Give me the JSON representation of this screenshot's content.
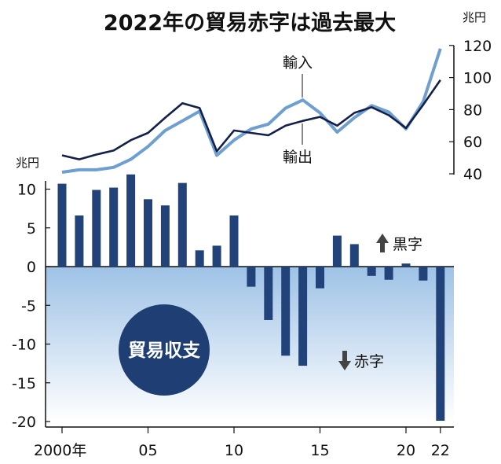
{
  "chart_data": {
    "title": "2022年の貿易赤字は過去最大",
    "x_tick_labels": [
      "2000年",
      "05",
      "10",
      "15",
      "20",
      "22"
    ],
    "top": {
      "type": "line",
      "unit": "兆円",
      "ylim": [
        40,
        120
      ],
      "yticks": [
        40,
        60,
        80,
        100,
        120
      ],
      "x": [
        2000,
        2001,
        2002,
        2003,
        2004,
        2005,
        2006,
        2007,
        2008,
        2009,
        2010,
        2011,
        2012,
        2013,
        2014,
        2015,
        2016,
        2017,
        2018,
        2019,
        2020,
        2021,
        2022
      ],
      "series": [
        {
          "name": "輸入",
          "label": "輸入",
          "color": "#6f9ed0",
          "values": [
            41,
            42.5,
            42.5,
            44,
            49,
            57,
            67,
            73,
            79,
            51.5,
            61,
            68,
            71,
            81,
            86,
            78,
            66,
            75,
            82.5,
            78.5,
            68,
            85,
            118
          ]
        },
        {
          "name": "輸出",
          "label": "輸出",
          "color": "#13204a",
          "values": [
            51.5,
            49,
            52,
            54.5,
            61,
            65.5,
            75,
            84,
            81,
            54,
            67,
            65.5,
            64,
            70,
            73,
            75.5,
            70,
            78,
            81.5,
            76.5,
            68.5,
            83,
            98.5
          ]
        }
      ]
    },
    "bottom": {
      "type": "bar",
      "unit": "兆円",
      "ylim": [
        -20,
        12
      ],
      "yticks": [
        10,
        5,
        0,
        -5,
        -10,
        -15,
        -20
      ],
      "ytick_labels": [
        "10",
        "5",
        "0",
        "-5",
        "-10",
        "-15",
        "-20"
      ],
      "x": [
        2000,
        2001,
        2002,
        2003,
        2004,
        2005,
        2006,
        2007,
        2008,
        2009,
        2010,
        2011,
        2012,
        2013,
        2014,
        2015,
        2016,
        2017,
        2018,
        2019,
        2020,
        2021,
        2022
      ],
      "values": [
        10.7,
        6.6,
        9.9,
        10.2,
        11.9,
        8.7,
        7.9,
        10.8,
        2.1,
        2.7,
        6.6,
        -2.6,
        -6.9,
        -11.5,
        -12.8,
        -2.8,
        4.0,
        2.9,
        -1.2,
        -1.7,
        0.4,
        -1.8,
        -19.9
      ],
      "bar_color": "#22437a",
      "annotations": {
        "surplus": "黒字",
        "deficit": "赤字",
        "badge": "貿易収支"
      }
    }
  }
}
